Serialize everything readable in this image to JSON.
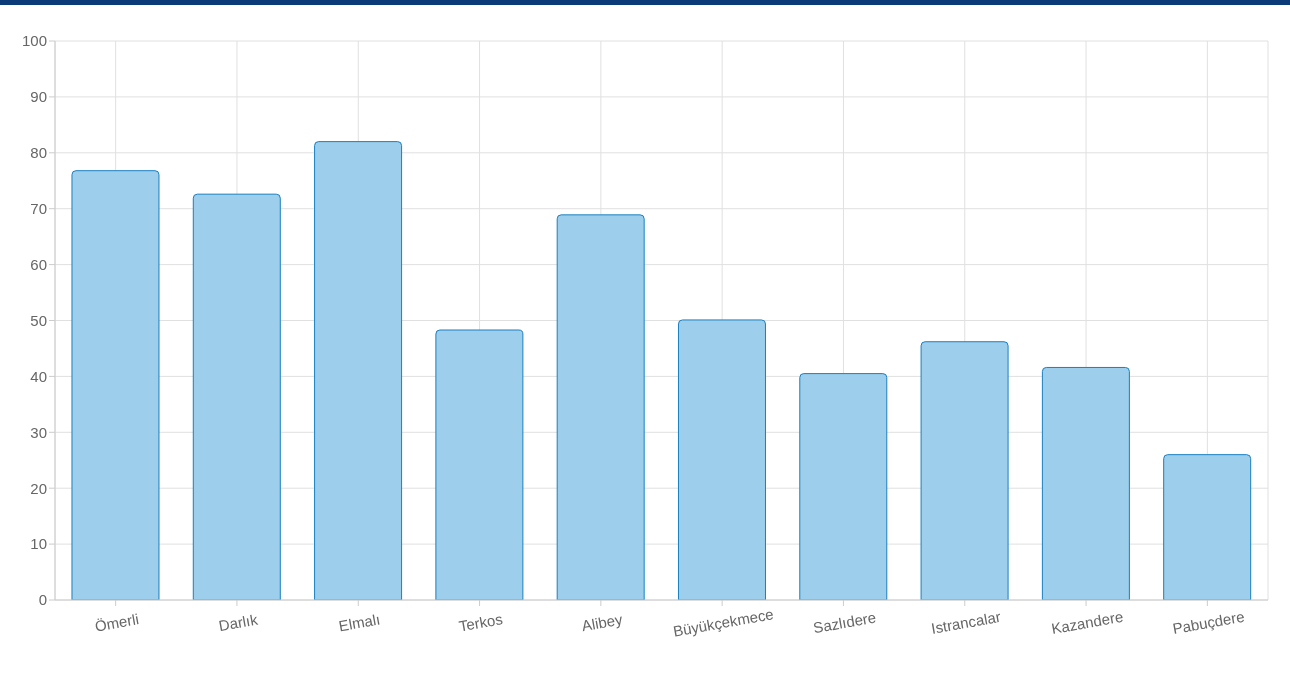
{
  "chart_data": {
    "type": "bar",
    "categories": [
      "Ömerli",
      "Darlık",
      "Elmalı",
      "Terkos",
      "Alibey",
      "Büyükçekmece",
      "Sazlıdere",
      "Istrancalar",
      "Kazandere",
      "Pabuçdere"
    ],
    "values": [
      76.8,
      72.6,
      82.0,
      48.3,
      68.9,
      50.1,
      40.5,
      46.2,
      41.6,
      26.0
    ],
    "color": "#9dcfec",
    "ylim": [
      0,
      100
    ],
    "yticks": [
      0,
      10,
      20,
      30,
      40,
      50,
      60,
      70,
      80,
      90,
      100
    ],
    "grid": true
  }
}
